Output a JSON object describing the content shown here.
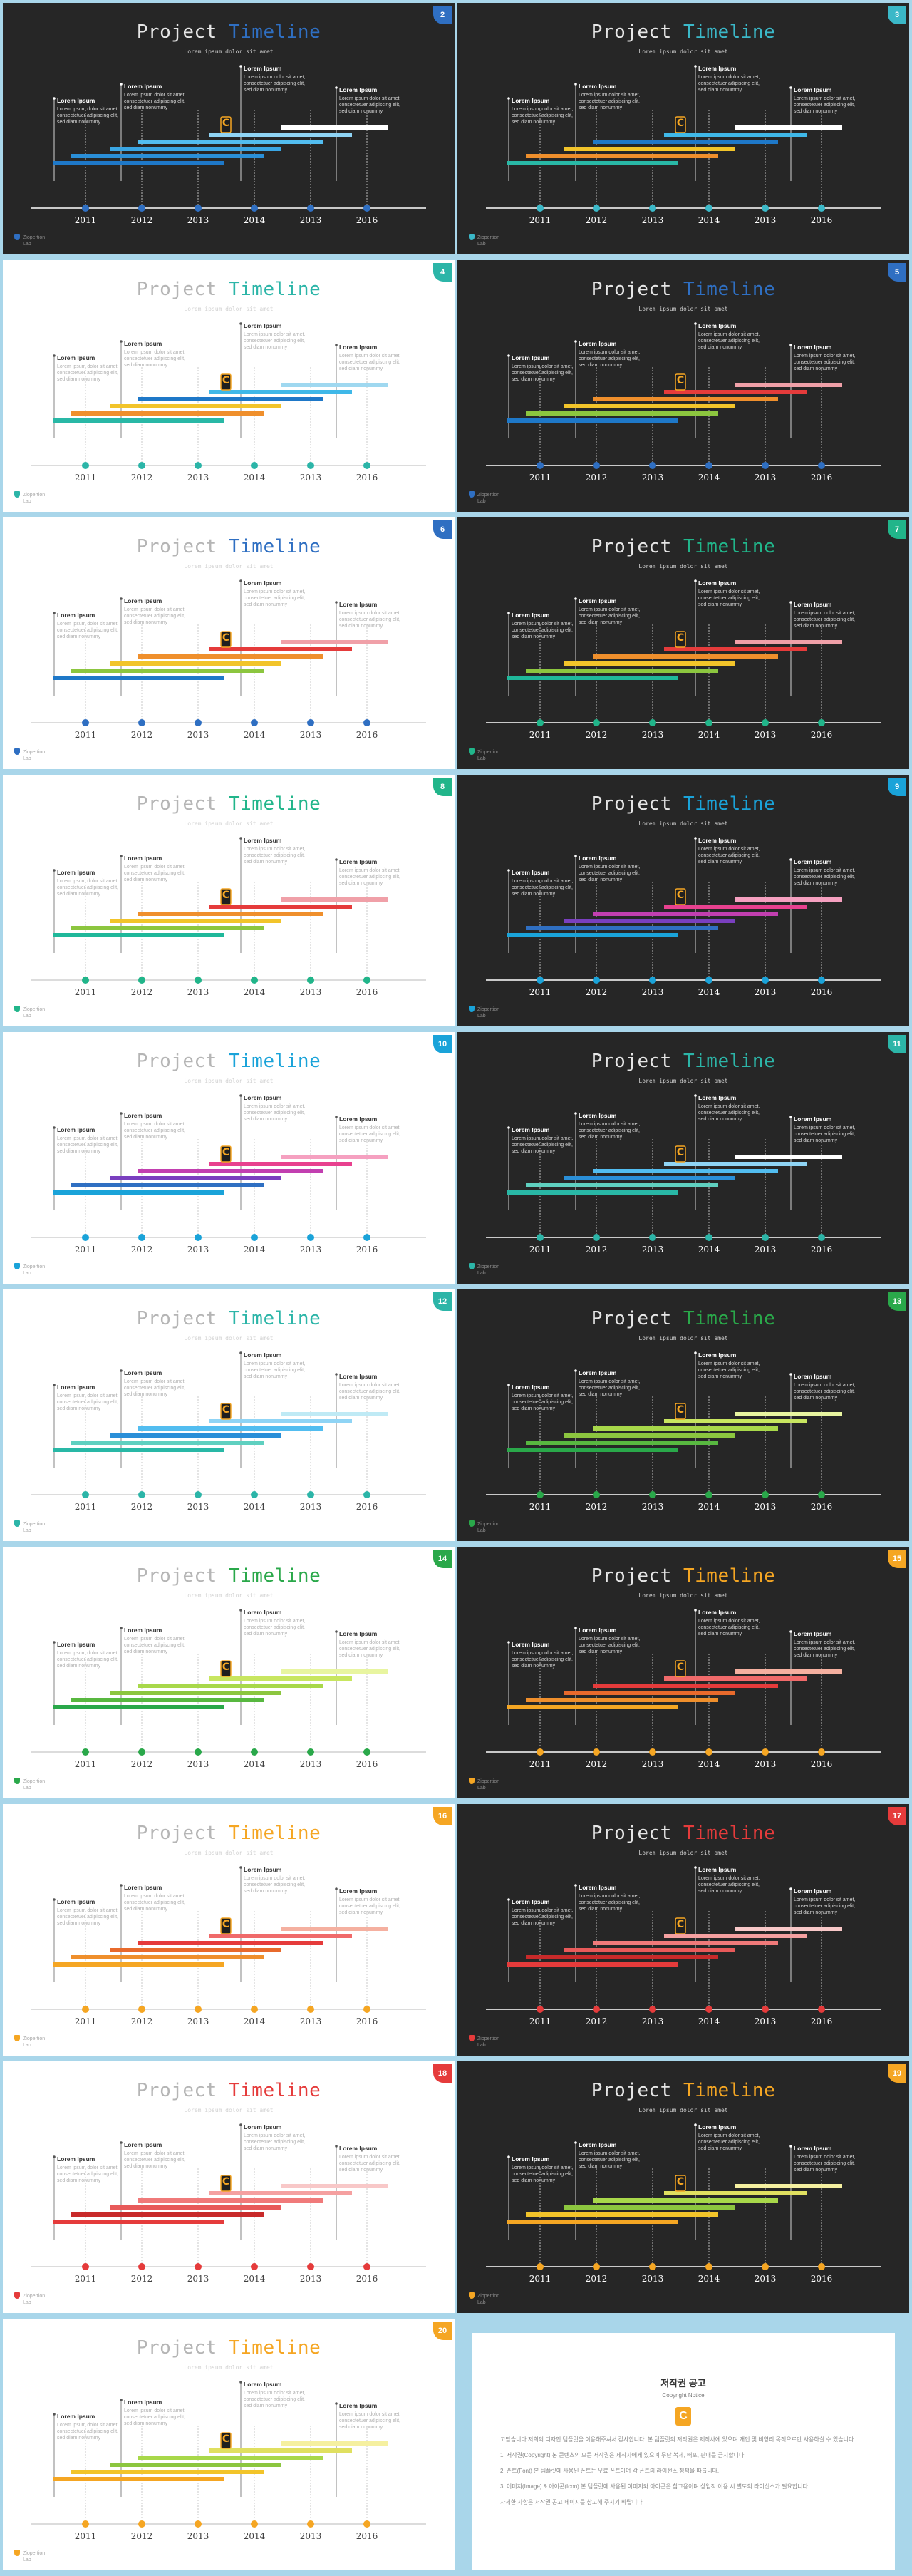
{
  "deck": {
    "title_word1": "Project",
    "title_word2": "Timeline",
    "subtitle": "Lorem ipsum dolor sit amet",
    "years": [
      "2011",
      "2012",
      "2013",
      "2014",
      "2013",
      "2016"
    ],
    "brand_line1": "Ziopertion",
    "brand_line2": "Lab",
    "notes": [
      {
        "heading": "Lorem Ipsum",
        "body": "Lorem ipsum dolor sit amet, consectetuer adipiscing elit, sed diam nonummy"
      },
      {
        "heading": "Lorem Ipsum",
        "body": "Lorem ipsum dolor sit amet, consectetuer adipiscing elit, sed diam nonummy"
      },
      {
        "heading": "Lorem Ipsum",
        "body": "Lorem ipsum dolor sit amet, consectetuer adipiscing elit, sed diam nonummy"
      },
      {
        "heading": "Lorem Ipsum",
        "body": "Lorem ipsum dolor sit amet, consectetuer adipiscing elit, sed diam nonummy"
      }
    ],
    "logo_letter": "C"
  },
  "slides": [
    {
      "num": "2",
      "theme": "dark",
      "accent": "#2f6fc2",
      "bars": [
        "#1e78c8",
        "#2a8fd8",
        "#3aa6e4",
        "#52bdf0",
        "#8fd4f5",
        "#ffffff"
      ]
    },
    {
      "num": "3",
      "theme": "dark",
      "accent": "#3bb8c8",
      "bars": [
        "#29b8a6",
        "#ef8f2c",
        "#f2c42a",
        "#1e78c8",
        "#3fb8e8",
        "#ffffff"
      ]
    },
    {
      "num": "4",
      "theme": "light",
      "accent": "#2cb5a8",
      "bars": [
        "#29b8a6",
        "#ef8f2c",
        "#f2c42a",
        "#1e78c8",
        "#3fb8e8",
        "#9fd8f0"
      ]
    },
    {
      "num": "5",
      "theme": "dark",
      "accent": "#2f6fc2",
      "bars": [
        "#1e78c8",
        "#8cc63f",
        "#f2c42a",
        "#ef8f2c",
        "#e53b3b",
        "#f0a0a8"
      ]
    },
    {
      "num": "6",
      "theme": "light",
      "accent": "#2f6fc2",
      "bars": [
        "#1e78c8",
        "#8cc63f",
        "#f2c42a",
        "#ef8f2c",
        "#e53b3b",
        "#f0a0a8"
      ]
    },
    {
      "num": "7",
      "theme": "dark",
      "accent": "#21b58a",
      "bars": [
        "#1fb89a",
        "#8cc63f",
        "#f2c42a",
        "#ef8f2c",
        "#e53b3b",
        "#f0a0a8"
      ]
    },
    {
      "num": "8",
      "theme": "light",
      "accent": "#21b58a",
      "bars": [
        "#1fb89a",
        "#8cc63f",
        "#f2c42a",
        "#ef8f2c",
        "#e53b3b",
        "#f0a0a8"
      ]
    },
    {
      "num": "9",
      "theme": "dark",
      "accent": "#1aa3d9",
      "bars": [
        "#1aa3d9",
        "#2f6fc2",
        "#7a3fbf",
        "#c23fb0",
        "#e8418f",
        "#f5a0c0"
      ]
    },
    {
      "num": "10",
      "theme": "light",
      "accent": "#1aa3d9",
      "bars": [
        "#1aa3d9",
        "#2f6fc2",
        "#7a3fbf",
        "#c23fb0",
        "#e8418f",
        "#f5a0c0"
      ]
    },
    {
      "num": "11",
      "theme": "dark",
      "accent": "#2cb5a8",
      "bars": [
        "#29b8a6",
        "#5fd0c0",
        "#2a8fd8",
        "#52bdf0",
        "#8fd4f5",
        "#ffffff"
      ]
    },
    {
      "num": "12",
      "theme": "light",
      "accent": "#2cb5a8",
      "bars": [
        "#29b8a6",
        "#5fd0c0",
        "#2a8fd8",
        "#52bdf0",
        "#8fd4f5",
        "#bfeaf5"
      ]
    },
    {
      "num": "13",
      "theme": "dark",
      "accent": "#2aa84a",
      "bars": [
        "#2aa84a",
        "#58b840",
        "#8cc63f",
        "#a8d84a",
        "#c8e660",
        "#e8f5a0"
      ]
    },
    {
      "num": "14",
      "theme": "light",
      "accent": "#2aa84a",
      "bars": [
        "#2aa84a",
        "#58b840",
        "#8cc63f",
        "#a8d84a",
        "#c8e660",
        "#e8f5a0"
      ]
    },
    {
      "num": "15",
      "theme": "dark",
      "accent": "#f5a623",
      "bars": [
        "#f5a623",
        "#ef8f2c",
        "#e86a2c",
        "#e53b3b",
        "#f06a6a",
        "#f5b0a0"
      ]
    },
    {
      "num": "16",
      "theme": "light",
      "accent": "#f5a623",
      "bars": [
        "#f5a623",
        "#ef8f2c",
        "#e86a2c",
        "#e53b3b",
        "#f06a6a",
        "#f5b0a0"
      ]
    },
    {
      "num": "17",
      "theme": "dark",
      "accent": "#e53b3b",
      "bars": [
        "#e53b3b",
        "#c82a2a",
        "#e85a5a",
        "#f07a7a",
        "#f5a0a0",
        "#f8c8c8"
      ]
    },
    {
      "num": "18",
      "theme": "light",
      "accent": "#e53b3b",
      "bars": [
        "#e53b3b",
        "#c82a2a",
        "#e85a5a",
        "#f07a7a",
        "#f5a0a0",
        "#f8c8c8"
      ]
    },
    {
      "num": "19",
      "theme": "dark",
      "accent": "#f5a623",
      "bars": [
        "#f5a623",
        "#f2c42a",
        "#8cc63f",
        "#a8d84a",
        "#e0e060",
        "#f5f0a0"
      ]
    },
    {
      "num": "20",
      "theme": "light",
      "accent": "#f5a623",
      "bars": [
        "#f5a623",
        "#f2c42a",
        "#8cc63f",
        "#a8d84a",
        "#e0e060",
        "#f5f0a0"
      ]
    }
  ],
  "notice": {
    "title": "저작권 공고",
    "subtitle": "Copyright Notice",
    "logo_letter": "C",
    "paragraphs": [
      "고맙습니다 저희의 디자인 템플릿을 이용해주셔서 감사합니다. 본 템플릿의 저작권은 제작사에 있으며 개인 및 비영리 목적으로만 사용하실 수 있습니다.",
      "1. 저작권(Copyright) 본 콘텐츠의 모든 저작권은 제작자에게 있으며 무단 복제, 배포, 판매를 금지합니다.",
      "2. 폰트(Font) 본 템플릿에 사용된 폰트는 무료 폰트이며 각 폰트의 라이선스 정책을 따릅니다.",
      "3. 이미지(Image) & 아이콘(Icon) 본 템플릿에 사용된 이미지와 아이콘은 참고용이며 상업적 이용 시 별도의 라이선스가 필요합니다.",
      "자세한 사항은 저작권 공고 페이지를 참고해 주시기 바랍니다."
    ]
  }
}
